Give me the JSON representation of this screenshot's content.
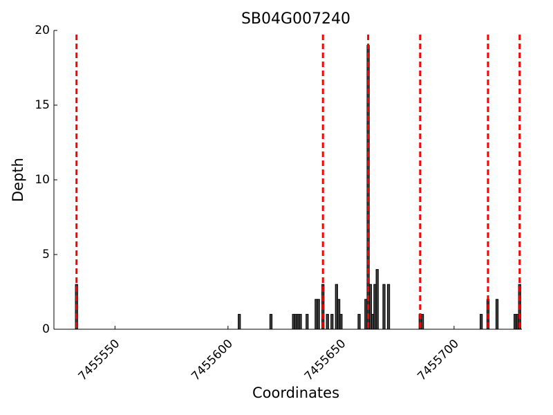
{
  "chart_data": {
    "type": "bar",
    "title": "SB04G007240",
    "xlabel": "Coordinates",
    "ylabel": "Depth",
    "x": [
      7455533,
      7455605,
      7455619,
      7455629,
      7455630,
      7455631,
      7455632,
      7455635,
      7455639,
      7455640,
      7455642,
      7455644,
      7455646,
      7455648,
      7455649,
      7455650,
      7455658,
      7455661,
      7455662,
      7455663,
      7455664,
      7455665,
      7455666,
      7455669,
      7455671,
      7455685,
      7455686,
      7455712,
      7455715,
      7455719,
      7455727,
      7455728,
      7455729
    ],
    "values": [
      3,
      1,
      1,
      1,
      1,
      1,
      1,
      1,
      2,
      2,
      3,
      1,
      1,
      3,
      2,
      1,
      1,
      2,
      19,
      3,
      1,
      3,
      4,
      3,
      3,
      1,
      1,
      1,
      2,
      2,
      1,
      1,
      3
    ],
    "color": "#404040",
    "vlines": {
      "x": [
        7455533,
        7455642,
        7455662,
        7455685,
        7455715,
        7455729
      ],
      "color": "#ff0000"
    },
    "xlim": [
      7455523,
      7455730
    ],
    "xticks": [
      7455550,
      7455600,
      7455650,
      7455700
    ],
    "ylim": [
      0,
      20
    ],
    "yticks": [
      0,
      5,
      10,
      15,
      20
    ]
  }
}
